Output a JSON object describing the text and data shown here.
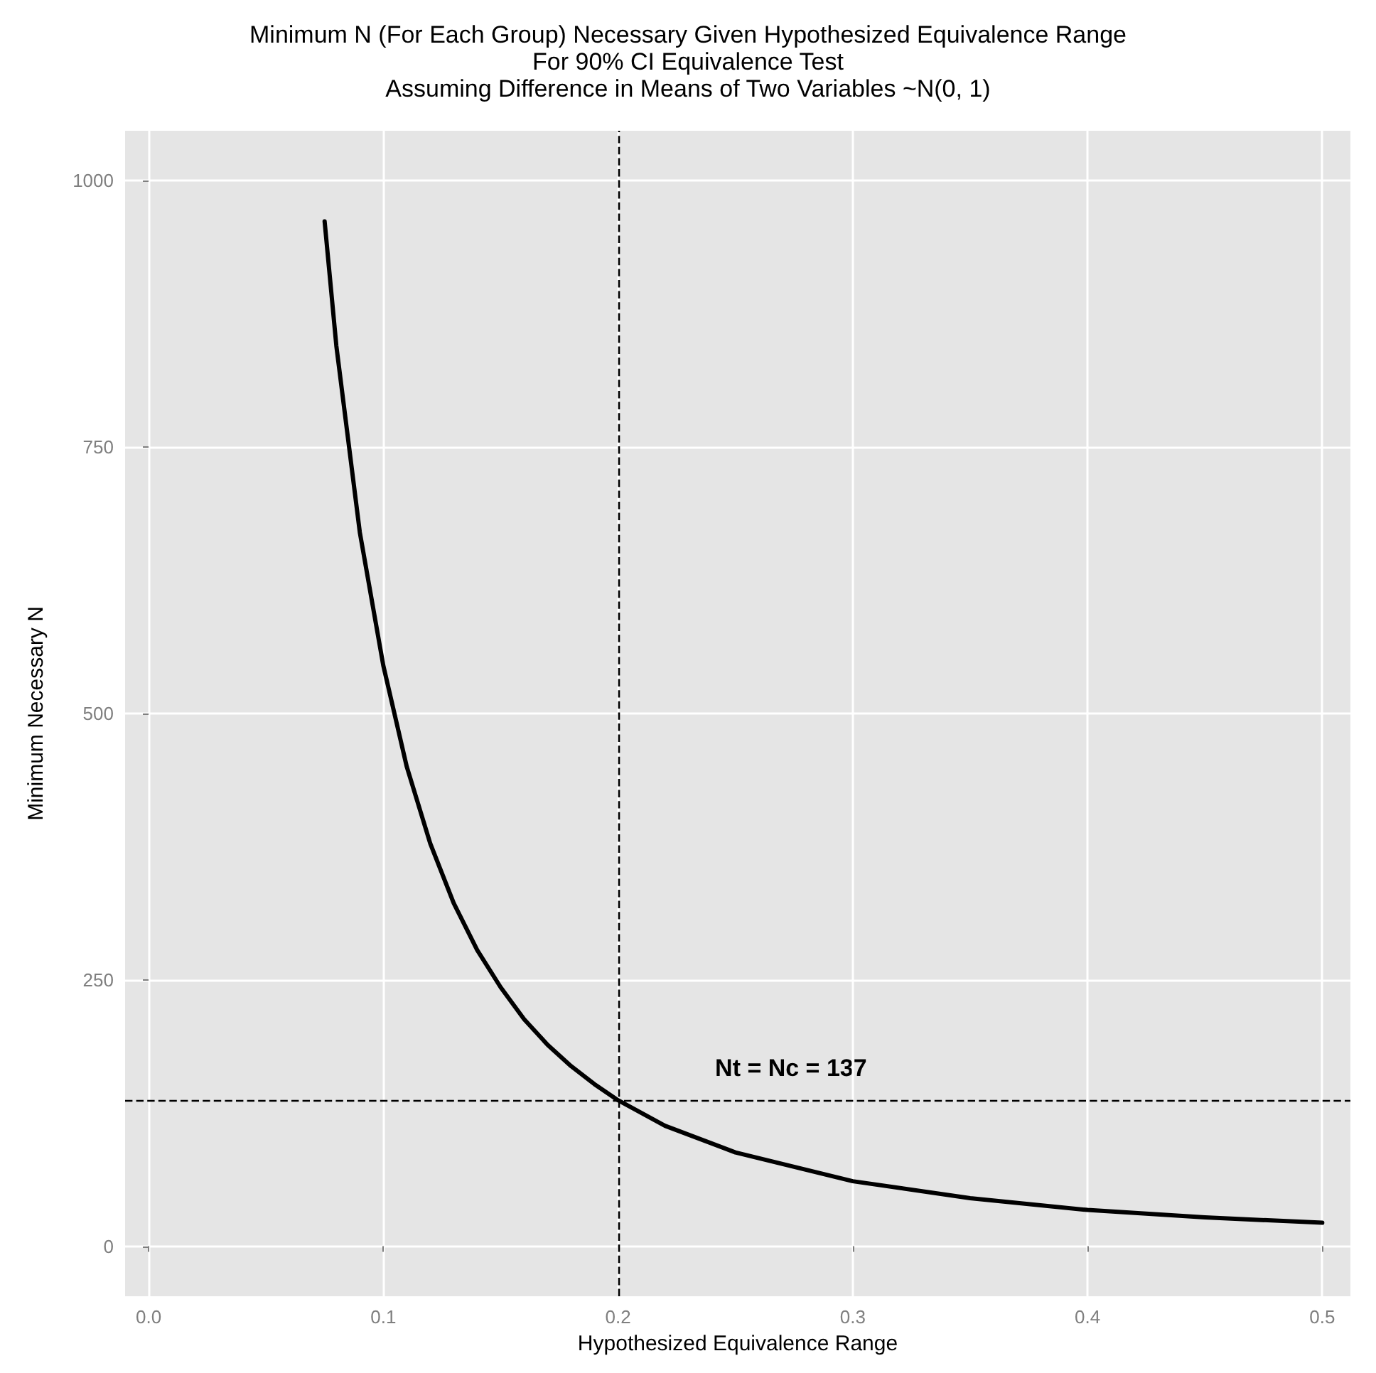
{
  "chart_data": {
    "type": "line",
    "title": "Minimum N (For Each Group) Necessary Given Hypothesized Equivalence Range\nFor 90% CI Equivalence Test\nAssuming Difference in Means of Two Variables ~N(0, 1)",
    "xlabel": "Hypothesized Equivalence Range",
    "ylabel": "Minimum Necessary N",
    "x": [
      0.075,
      0.08,
      0.09,
      0.1,
      0.11,
      0.12,
      0.13,
      0.14,
      0.15,
      0.16,
      0.17,
      0.18,
      0.19,
      0.2,
      0.22,
      0.25,
      0.3,
      0.35,
      0.4,
      0.45,
      0.5
    ],
    "series": [
      {
        "color": "#000000",
        "values": [
          962,
          845,
          670,
          545,
          450,
          378,
          322,
          278,
          243,
          213,
          189,
          169,
          152,
          137,
          113,
          88,
          61,
          45,
          34,
          27,
          22
        ]
      }
    ],
    "xlim": [
      -0.01,
      0.512
    ],
    "xticks": [
      {
        "value": 0,
        "label": "0.0"
      },
      0.1,
      0.2,
      0.3,
      0.4,
      0.5
    ],
    "ylim": [
      -47,
      1047
    ],
    "yticks": [
      0,
      250,
      500,
      750,
      1000
    ],
    "ref_lines": [
      {
        "axis": "x",
        "value": 0.2,
        "line_style": "dashed",
        "color": "#000000"
      },
      {
        "axis": "y",
        "value": 137,
        "line_style": "dashed",
        "color": "#000000"
      }
    ],
    "annotations": [
      "Nt = Nc = 137"
    ],
    "grid": true,
    "marker": "none",
    "line_style": "solid"
  }
}
